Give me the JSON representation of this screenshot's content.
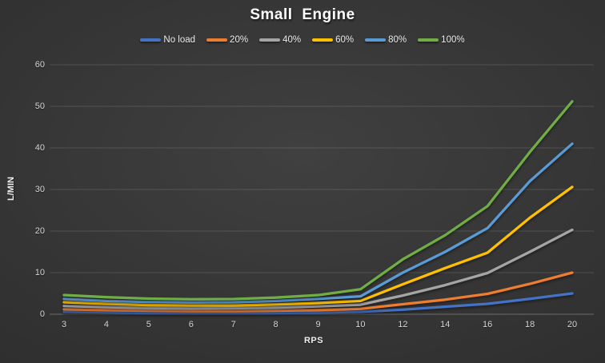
{
  "title": "Small Engine",
  "chart_data": {
    "type": "line",
    "title": "Small Engine",
    "xlabel": "RPS",
    "ylabel": "L/MIN",
    "categories": [
      "3",
      "4",
      "5",
      "6",
      "7",
      "8",
      "9",
      "10",
      "12",
      "14",
      "16",
      "18",
      "20"
    ],
    "y_ticks": [
      0,
      10,
      20,
      30,
      40,
      50,
      60
    ],
    "ylim": [
      0,
      60
    ],
    "grid": "horizontal",
    "legend_position": "top",
    "series": [
      {
        "name": "No load",
        "color": "#4472C4",
        "values": [
          0.6,
          0.45,
          0.3,
          0.25,
          0.25,
          0.3,
          0.4,
          0.6,
          1.1,
          1.8,
          2.5,
          3.7,
          5.0
        ]
      },
      {
        "name": "20%",
        "color": "#ED7D31",
        "values": [
          1.2,
          1.0,
          0.85,
          0.75,
          0.75,
          0.85,
          1.0,
          1.3,
          2.4,
          3.5,
          4.9,
          7.3,
          10.0
        ]
      },
      {
        "name": "40%",
        "color": "#A5A5A5",
        "values": [
          2.0,
          1.7,
          1.5,
          1.4,
          1.45,
          1.6,
          1.9,
          2.3,
          4.5,
          7.0,
          9.9,
          15.0,
          20.3
        ]
      },
      {
        "name": "60%",
        "color": "#FFC000",
        "values": [
          2.9,
          2.5,
          2.2,
          2.1,
          2.1,
          2.35,
          2.7,
          3.2,
          7.2,
          11.1,
          14.8,
          23.2,
          30.6
        ]
      },
      {
        "name": "80%",
        "color": "#5B9BD5",
        "values": [
          3.7,
          3.2,
          2.95,
          2.85,
          2.9,
          3.2,
          3.7,
          4.3,
          10.0,
          15.0,
          20.7,
          32.0,
          41.0
        ]
      },
      {
        "name": "100%",
        "color": "#70AD47",
        "values": [
          4.6,
          4.1,
          3.75,
          3.6,
          3.65,
          4.0,
          4.6,
          6.0,
          13.2,
          19.0,
          26.0,
          39.0,
          51.2
        ]
      }
    ]
  },
  "colors": {
    "background_center": "#404040",
    "background_edge": "#262626",
    "gridline": "rgba(255,255,255,0.13)",
    "axis_line": "rgba(255,255,255,0.28)",
    "tick_text": "#d6d6d6",
    "title_text": "#ffffff"
  }
}
